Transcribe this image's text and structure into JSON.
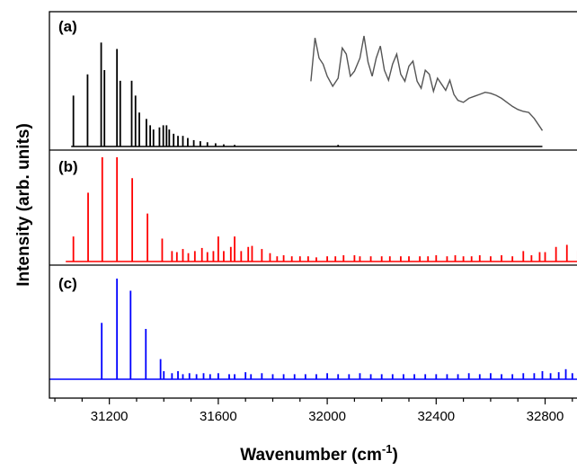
{
  "chart_data": {
    "type": "line",
    "xlabel": "Wavenumber (cm",
    "xlabel_sup": "-1",
    "xlabel_end": ")",
    "ylabel": "Intensity (arb. units)",
    "xlim": [
      30980,
      32960
    ],
    "x_ticks": [
      31200,
      31600,
      32000,
      32400,
      32800
    ],
    "x_tick_labels": [
      "31200",
      "31600",
      "32000",
      "32400",
      "32800"
    ],
    "grid": false,
    "legend": "none",
    "panels": [
      {
        "label": "(a)",
        "color": "#000000",
        "inset_color": "#555555",
        "x_range": [
          31060,
          32790
        ],
        "peaks": [
          [
            31068,
            0.48
          ],
          [
            31120,
            0.68
          ],
          [
            31170,
            0.98
          ],
          [
            31182,
            0.72
          ],
          [
            31228,
            0.92
          ],
          [
            31240,
            0.62
          ],
          [
            31282,
            0.62
          ],
          [
            31296,
            0.48
          ],
          [
            31310,
            0.32
          ],
          [
            31336,
            0.26
          ],
          [
            31350,
            0.2
          ],
          [
            31362,
            0.16
          ],
          [
            31384,
            0.18
          ],
          [
            31398,
            0.2
          ],
          [
            31410,
            0.2
          ],
          [
            31420,
            0.16
          ],
          [
            31436,
            0.12
          ],
          [
            31452,
            0.1
          ],
          [
            31470,
            0.1
          ],
          [
            31488,
            0.08
          ],
          [
            31510,
            0.06
          ],
          [
            31534,
            0.05
          ],
          [
            31560,
            0.04
          ],
          [
            31590,
            0.03
          ],
          [
            31620,
            0.02
          ],
          [
            31660,
            0.015
          ],
          [
            32040,
            0.015
          ]
        ],
        "inset_points": [
          [
            31940,
            0.55
          ],
          [
            31955,
            0.98
          ],
          [
            31970,
            0.78
          ],
          [
            31985,
            0.72
          ],
          [
            32000,
            0.6
          ],
          [
            32020,
            0.5
          ],
          [
            32040,
            0.58
          ],
          [
            32055,
            0.88
          ],
          [
            32070,
            0.82
          ],
          [
            32085,
            0.6
          ],
          [
            32100,
            0.65
          ],
          [
            32120,
            0.78
          ],
          [
            32135,
            1.0
          ],
          [
            32150,
            0.74
          ],
          [
            32165,
            0.6
          ],
          [
            32180,
            0.78
          ],
          [
            32195,
            0.9
          ],
          [
            32210,
            0.66
          ],
          [
            32225,
            0.56
          ],
          [
            32240,
            0.72
          ],
          [
            32255,
            0.82
          ],
          [
            32270,
            0.62
          ],
          [
            32285,
            0.55
          ],
          [
            32300,
            0.7
          ],
          [
            32315,
            0.75
          ],
          [
            32330,
            0.55
          ],
          [
            32345,
            0.48
          ],
          [
            32360,
            0.66
          ],
          [
            32375,
            0.62
          ],
          [
            32390,
            0.45
          ],
          [
            32405,
            0.58
          ],
          [
            32420,
            0.52
          ],
          [
            32435,
            0.46
          ],
          [
            32450,
            0.56
          ],
          [
            32465,
            0.42
          ],
          [
            32480,
            0.36
          ],
          [
            32500,
            0.34
          ],
          [
            32520,
            0.38
          ],
          [
            32540,
            0.4
          ],
          [
            32560,
            0.42
          ],
          [
            32580,
            0.44
          ],
          [
            32600,
            0.43
          ],
          [
            32620,
            0.41
          ],
          [
            32640,
            0.38
          ],
          [
            32660,
            0.34
          ],
          [
            32680,
            0.3
          ],
          [
            32700,
            0.27
          ],
          [
            32720,
            0.25
          ],
          [
            32740,
            0.24
          ],
          [
            32760,
            0.18
          ],
          [
            32780,
            0.1
          ],
          [
            32790,
            0.06
          ]
        ]
      },
      {
        "label": "(b)",
        "color": "#ff0000",
        "x_range": [
          31040,
          32960
        ],
        "peaks": [
          [
            31068,
            0.24
          ],
          [
            31122,
            0.66
          ],
          [
            31174,
            1.0
          ],
          [
            31228,
            1.0
          ],
          [
            31284,
            0.8
          ],
          [
            31340,
            0.46
          ],
          [
            31394,
            0.22
          ],
          [
            31430,
            0.1
          ],
          [
            31448,
            0.09
          ],
          [
            31470,
            0.12
          ],
          [
            31490,
            0.08
          ],
          [
            31514,
            0.1
          ],
          [
            31540,
            0.13
          ],
          [
            31560,
            0.09
          ],
          [
            31582,
            0.1
          ],
          [
            31600,
            0.24
          ],
          [
            31620,
            0.1
          ],
          [
            31646,
            0.14
          ],
          [
            31660,
            0.24
          ],
          [
            31684,
            0.1
          ],
          [
            31710,
            0.14
          ],
          [
            31724,
            0.15
          ],
          [
            31760,
            0.12
          ],
          [
            31790,
            0.08
          ],
          [
            31816,
            0.05
          ],
          [
            31840,
            0.06
          ],
          [
            31870,
            0.05
          ],
          [
            31900,
            0.05
          ],
          [
            31930,
            0.05
          ],
          [
            31960,
            0.04
          ],
          [
            32000,
            0.05
          ],
          [
            32030,
            0.05
          ],
          [
            32060,
            0.06
          ],
          [
            32100,
            0.06
          ],
          [
            32120,
            0.05
          ],
          [
            32160,
            0.05
          ],
          [
            32200,
            0.05
          ],
          [
            32230,
            0.05
          ],
          [
            32270,
            0.05
          ],
          [
            32300,
            0.05
          ],
          [
            32340,
            0.05
          ],
          [
            32370,
            0.05
          ],
          [
            32400,
            0.06
          ],
          [
            32440,
            0.05
          ],
          [
            32470,
            0.06
          ],
          [
            32500,
            0.05
          ],
          [
            32530,
            0.05
          ],
          [
            32560,
            0.06
          ],
          [
            32600,
            0.05
          ],
          [
            32640,
            0.06
          ],
          [
            32680,
            0.05
          ],
          [
            32720,
            0.1
          ],
          [
            32750,
            0.06
          ],
          [
            32780,
            0.09
          ],
          [
            32800,
            0.09
          ],
          [
            32840,
            0.14
          ],
          [
            32880,
            0.16
          ],
          [
            32920,
            0.1
          ],
          [
            32950,
            0.12
          ]
        ]
      },
      {
        "label": "(c)",
        "color": "#0000ff",
        "x_range": [
          30980,
          32960
        ],
        "peaks": [
          [
            31172,
            0.56
          ],
          [
            31228,
            1.0
          ],
          [
            31278,
            0.88
          ],
          [
            31334,
            0.5
          ],
          [
            31388,
            0.2
          ],
          [
            31400,
            0.08
          ],
          [
            31430,
            0.06
          ],
          [
            31452,
            0.08
          ],
          [
            31470,
            0.05
          ],
          [
            31494,
            0.06
          ],
          [
            31520,
            0.05
          ],
          [
            31546,
            0.06
          ],
          [
            31570,
            0.05
          ],
          [
            31600,
            0.06
          ],
          [
            31640,
            0.05
          ],
          [
            31660,
            0.05
          ],
          [
            31700,
            0.07
          ],
          [
            31720,
            0.05
          ],
          [
            31760,
            0.06
          ],
          [
            31800,
            0.05
          ],
          [
            31840,
            0.05
          ],
          [
            31880,
            0.05
          ],
          [
            31920,
            0.05
          ],
          [
            31960,
            0.05
          ],
          [
            32000,
            0.06
          ],
          [
            32040,
            0.05
          ],
          [
            32080,
            0.05
          ],
          [
            32120,
            0.06
          ],
          [
            32160,
            0.05
          ],
          [
            32200,
            0.05
          ],
          [
            32240,
            0.05
          ],
          [
            32280,
            0.05
          ],
          [
            32320,
            0.05
          ],
          [
            32360,
            0.05
          ],
          [
            32400,
            0.05
          ],
          [
            32440,
            0.05
          ],
          [
            32480,
            0.05
          ],
          [
            32520,
            0.06
          ],
          [
            32560,
            0.05
          ],
          [
            32600,
            0.06
          ],
          [
            32640,
            0.05
          ],
          [
            32680,
            0.05
          ],
          [
            32720,
            0.06
          ],
          [
            32760,
            0.06
          ],
          [
            32790,
            0.08
          ],
          [
            32820,
            0.06
          ],
          [
            32850,
            0.07
          ],
          [
            32876,
            0.1
          ],
          [
            32900,
            0.06
          ],
          [
            32940,
            0.1
          ]
        ]
      }
    ]
  }
}
